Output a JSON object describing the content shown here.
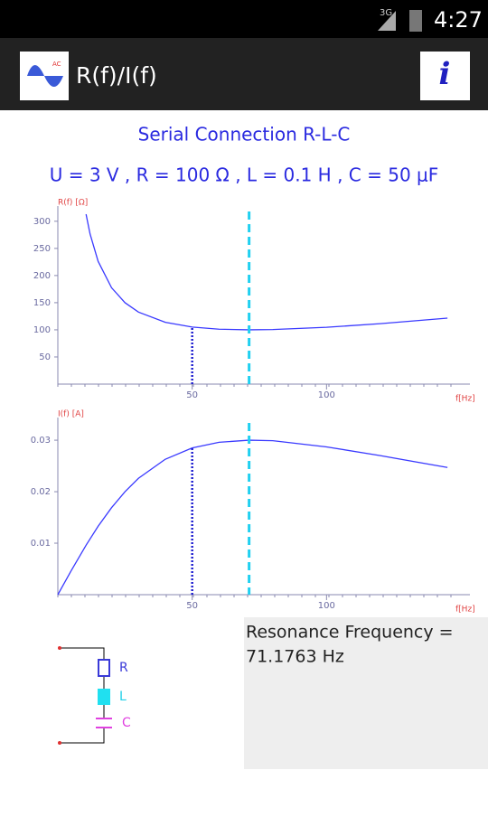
{
  "status_bar": {
    "network": "3G",
    "time": "4:27"
  },
  "app_bar": {
    "title": "R(f)/I(f)",
    "icon_label": "AC",
    "info_button": "i"
  },
  "heading": "Serial Connection R-L-C",
  "parameters": "U = 3 V , R = 100 Ω , L = 0.1 H , C = 50 μF",
  "chart_data": [
    {
      "type": "line",
      "y_label": "R(f) [Ω]",
      "x_label": "f[Hz]",
      "color": "#3a3aff",
      "x": [
        10.5,
        12,
        15,
        20,
        25,
        30,
        40,
        50,
        60,
        71.1763,
        80,
        100,
        120,
        145
      ],
      "values": [
        313,
        276.4,
        226.1,
        177.5,
        149.9,
        132.7,
        113.9,
        105.1,
        101.2,
        100,
        100.5,
        104.7,
        111.3,
        121.6
      ],
      "xlim": [
        0,
        150
      ],
      "ylim": [
        0,
        328
      ],
      "xticks": [
        50,
        100
      ],
      "yticks": [
        50,
        100,
        150,
        200,
        250,
        300
      ],
      "cursor_x": 50,
      "resonance_x": 71.1763
    },
    {
      "type": "line",
      "y_label": "I(f) [A]",
      "x_label": "f[Hz]",
      "color": "#3a3aff",
      "x": [
        0,
        2,
        5,
        10.5,
        15,
        20,
        25,
        30,
        40,
        50,
        60,
        71.1763,
        80,
        100,
        120,
        145
      ],
      "values": [
        0,
        0.00188,
        0.00468,
        0.0096,
        0.0133,
        0.0169,
        0.02,
        0.0226,
        0.0263,
        0.0285,
        0.0296,
        0.03,
        0.0299,
        0.0287,
        0.027,
        0.0247
      ],
      "xlim": [
        0,
        150
      ],
      "ylim": [
        0,
        0.0344
      ],
      "xticks": [
        50,
        100
      ],
      "yticks": [
        0.01,
        0.02,
        0.03
      ],
      "cursor_x": 50,
      "resonance_x": 71.1763
    }
  ],
  "circuit": {
    "r_label": "R",
    "l_label": "L",
    "c_label": "C"
  },
  "result": {
    "line1": "Resonance Frequency =",
    "line2": "71.1763 Hz"
  }
}
